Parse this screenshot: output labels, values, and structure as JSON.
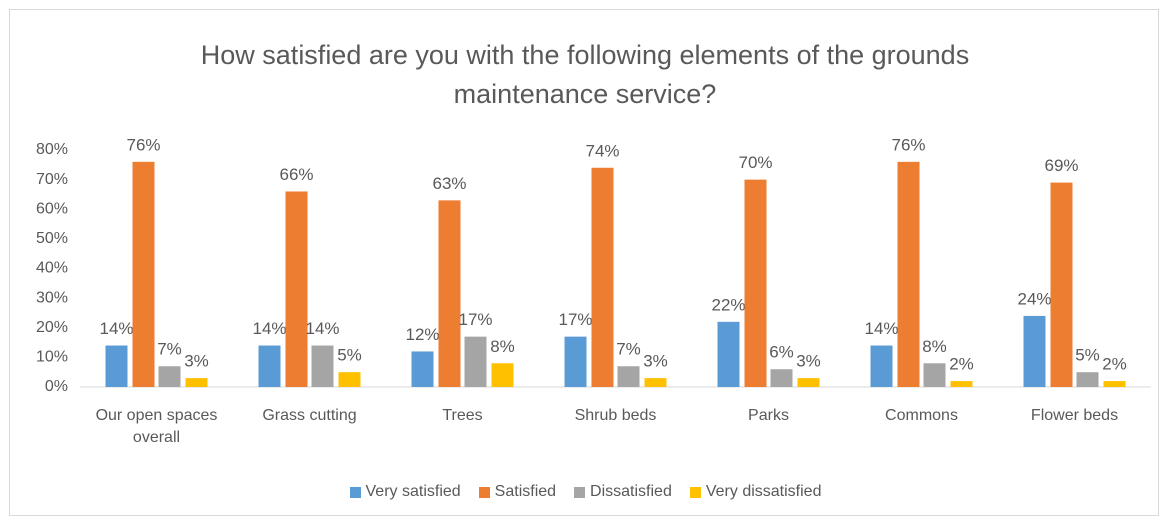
{
  "chart_data": {
    "type": "bar",
    "title": "How satisfied are you with the following elements of the grounds maintenance service?",
    "categories": [
      "Our open spaces overall",
      "Grass cutting",
      "Trees",
      "Shrub beds",
      "Parks",
      "Commons",
      "Flower beds"
    ],
    "series": [
      {
        "name": "Very satisfied",
        "color": "#5b9bd5",
        "values": [
          14,
          14,
          12,
          17,
          22,
          14,
          24
        ],
        "value_labels": [
          "14%",
          "14%",
          "12%",
          "17%",
          "22%",
          "14%",
          "24%"
        ]
      },
      {
        "name": "Satisfied",
        "color": "#ed7d31",
        "values": [
          76,
          66,
          63,
          74,
          70,
          76,
          69
        ],
        "value_labels": [
          "76%",
          "66%",
          "63%",
          "74%",
          "70%",
          "76%",
          "69%"
        ]
      },
      {
        "name": "Dissatisfied",
        "color": "#a5a5a5",
        "values": [
          7,
          14,
          17,
          7,
          6,
          8,
          5
        ],
        "value_labels": [
          "7%",
          "14%",
          "17%",
          "7%",
          "6%",
          "8%",
          "5%"
        ]
      },
      {
        "name": "Very dissatisfied",
        "color": "#ffc000",
        "values": [
          3,
          5,
          8,
          3,
          3,
          2,
          2
        ],
        "value_labels": [
          "3%",
          "5%",
          "8%",
          "3%",
          "3%",
          "2%",
          "2%"
        ]
      }
    ],
    "ylim": [
      0,
      80
    ],
    "yticks": [
      {
        "value": 0,
        "label": "0%"
      },
      {
        "value": 10,
        "label": "10%"
      },
      {
        "value": 20,
        "label": "20%"
      },
      {
        "value": 30,
        "label": "30%"
      },
      {
        "value": 40,
        "label": "40%"
      },
      {
        "value": 50,
        "label": "50%"
      },
      {
        "value": 60,
        "label": "60%"
      },
      {
        "value": 70,
        "label": "70%"
      },
      {
        "value": 80,
        "label": "80%"
      }
    ],
    "grid": false,
    "legend": "bottom"
  }
}
